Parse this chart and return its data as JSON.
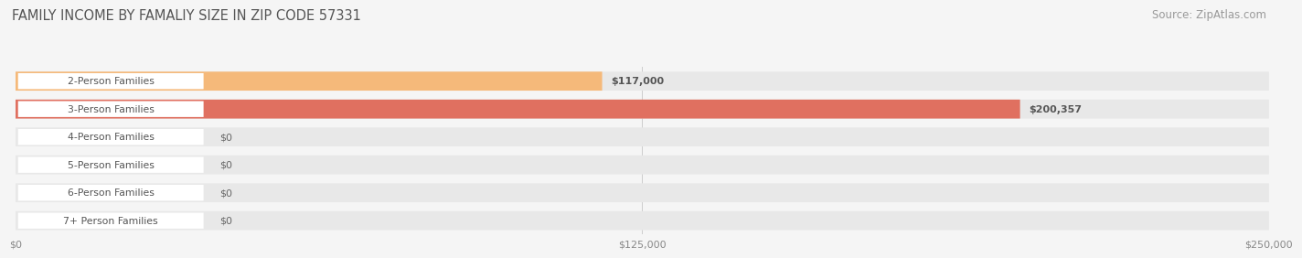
{
  "title": "FAMILY INCOME BY FAMALIY SIZE IN ZIP CODE 57331",
  "source": "Source: ZipAtlas.com",
  "categories": [
    "2-Person Families",
    "3-Person Families",
    "4-Person Families",
    "5-Person Families",
    "6-Person Families",
    "7+ Person Families"
  ],
  "values": [
    117000,
    200357,
    0,
    0,
    0,
    0
  ],
  "bar_colors": [
    "#f5b97a",
    "#e07060",
    "#a8c0e0",
    "#c8a8d8",
    "#5bbfb0",
    "#a8aad8"
  ],
  "label_colors": [
    "#555555",
    "#ffffff",
    "#555555",
    "#555555",
    "#555555",
    "#555555"
  ],
  "bar_label_texts": [
    "$117,000",
    "$200,357",
    "$0",
    "$0",
    "$0",
    "$0"
  ],
  "x_tick_labels": [
    "$0",
    "$125,000",
    "$250,000"
  ],
  "x_tick_values": [
    0,
    125000,
    250000
  ],
  "xlim": [
    0,
    250000
  ],
  "background_color": "#f5f5f5",
  "bar_bg_color": "#e8e8e8",
  "row_sep_color": "#d8d8d8",
  "grid_color": "#cccccc",
  "title_fontsize": 10.5,
  "source_fontsize": 8.5,
  "tick_fontsize": 8,
  "cat_fontsize": 7.8,
  "val_fontsize": 8
}
